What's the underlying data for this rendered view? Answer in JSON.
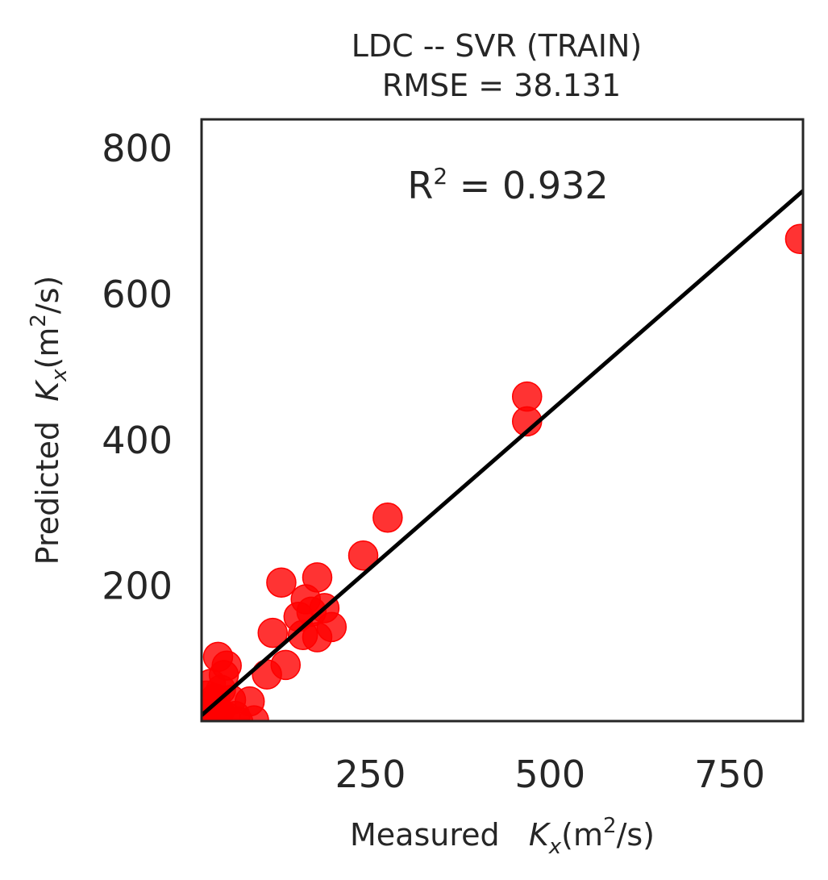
{
  "chart_data": {
    "type": "scatter",
    "title": "LDC -- SVR (TRAIN)",
    "subtitle": "RMSE = 38.131",
    "annotation": {
      "base": "R",
      "sup": "2",
      "rest": " = 0.932"
    },
    "xlabel": {
      "prefix": "Measured   ",
      "var": "K",
      "sub": "x",
      "unit_pre": "(m",
      "unit_sup": "2",
      "unit_post": "/s)"
    },
    "ylabel": {
      "prefix": "Predicted  ",
      "var": "K",
      "sub": "x",
      "unit_pre": "(m",
      "unit_sup": "2",
      "unit_post": "/s)"
    },
    "xlim": [
      15,
      852
    ],
    "ylim": [
      15,
      840
    ],
    "xticks": [
      250,
      500,
      750
    ],
    "yticks": [
      200,
      400,
      600,
      800
    ],
    "grid": false,
    "point_color": "#ff0000",
    "line_color": "#000000",
    "fit_line": {
      "x": [
        15,
        852
      ],
      "y": [
        23,
        742
      ]
    },
    "points": [
      {
        "x": 848,
        "y": 676
      },
      {
        "x": 468,
        "y": 460
      },
      {
        "x": 468,
        "y": 426
      },
      {
        "x": 274,
        "y": 294
      },
      {
        "x": 240,
        "y": 242
      },
      {
        "x": 176,
        "y": 212
      },
      {
        "x": 126,
        "y": 205
      },
      {
        "x": 160,
        "y": 182
      },
      {
        "x": 186,
        "y": 170
      },
      {
        "x": 168,
        "y": 165
      },
      {
        "x": 150,
        "y": 158
      },
      {
        "x": 196,
        "y": 144
      },
      {
        "x": 176,
        "y": 130
      },
      {
        "x": 114,
        "y": 136
      },
      {
        "x": 156,
        "y": 133
      },
      {
        "x": 132,
        "y": 92
      },
      {
        "x": 106,
        "y": 79
      },
      {
        "x": 38,
        "y": 103
      },
      {
        "x": 50,
        "y": 91
      },
      {
        "x": 46,
        "y": 78
      },
      {
        "x": 28,
        "y": 66
      },
      {
        "x": 42,
        "y": 58
      },
      {
        "x": 22,
        "y": 50
      },
      {
        "x": 34,
        "y": 46
      },
      {
        "x": 56,
        "y": 44
      },
      {
        "x": 82,
        "y": 42
      },
      {
        "x": 24,
        "y": 36
      },
      {
        "x": 30,
        "y": 30
      },
      {
        "x": 40,
        "y": 28
      },
      {
        "x": 18,
        "y": 24
      },
      {
        "x": 26,
        "y": 20
      },
      {
        "x": 48,
        "y": 22
      },
      {
        "x": 62,
        "y": 22
      },
      {
        "x": 88,
        "y": 16
      },
      {
        "x": 36,
        "y": 16
      },
      {
        "x": 20,
        "y": 14
      },
      {
        "x": 66,
        "y": 14
      }
    ]
  }
}
